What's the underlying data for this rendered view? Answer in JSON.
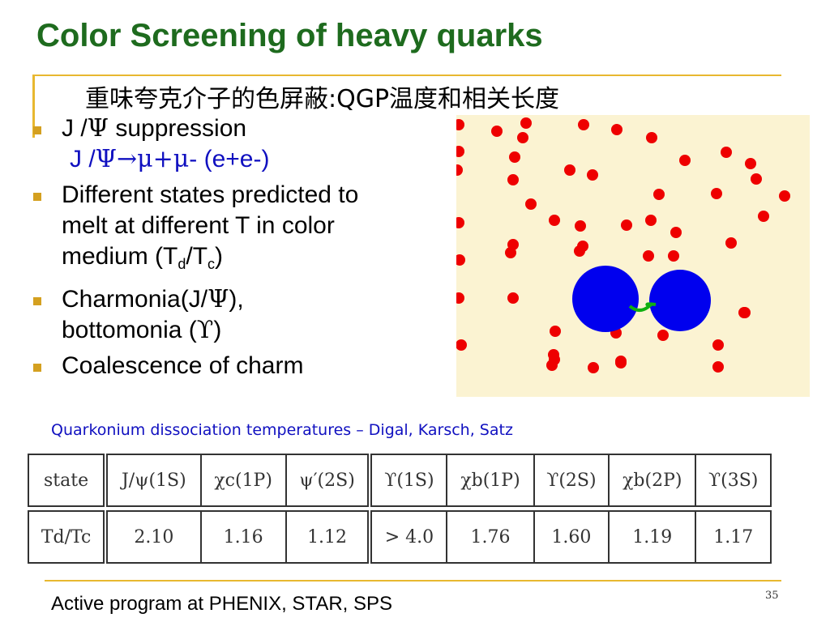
{
  "slide": {
    "title": "Color Screening of heavy quarks",
    "subtitle": "重味夸克介子的色屏蔽:QGP温度和相关长度",
    "page_number": "35",
    "footer": "Active program at PHENIX, STAR, SPS"
  },
  "bullets": {
    "b1_a": "J /",
    "b1_sym": "Ψ",
    "b1_b": " suppression",
    "b1_sub_a": "J /",
    "b1_sub_sym": "Ψ→μ+μ",
    "b1_sub_b": "- (e+e-)",
    "b2_line1": "Different states predicted to",
    "b2_line2": "melt at different T in color",
    "b2_line3_a": "medium (T",
    "b2_line3_sub1": "d",
    "b2_line3_b": "/T",
    "b2_line3_sub2": "c",
    "b2_line3_c": ")",
    "b3_line1_a": "Charmonia(J/",
    "b3_line1_sym": "Ψ",
    "b3_line1_b": "),",
    "b3_line2_a": "bottomonia (",
    "b3_line2_sym": "ϒ",
    "b3_line2_b": ")",
    "b4": "Coalescence of charm"
  },
  "caption": "Quarkonium dissociation temperatures – Digal, Karsch, Satz",
  "table": {
    "headers": [
      "state",
      "J/ψ(1S)",
      "χc(1P)",
      "ψ′(2S)",
      "ϒ(1S)",
      "χb(1P)",
      "ϒ(2S)",
      "χb(2P)",
      "ϒ(3S)"
    ],
    "row_label": "Td/Tc",
    "values": [
      "2.10",
      "1.16",
      "1.12",
      "> 4.0",
      "1.76",
      "1.60",
      "1.19",
      "1.17"
    ]
  },
  "colors": {
    "title": "#1e6b1e",
    "accent": "#e8b830",
    "link_blue": "#1010c0",
    "dot_red": "#ee0000",
    "quark_blue": "#0000ee",
    "sim_bg": "#fbf3d2"
  }
}
